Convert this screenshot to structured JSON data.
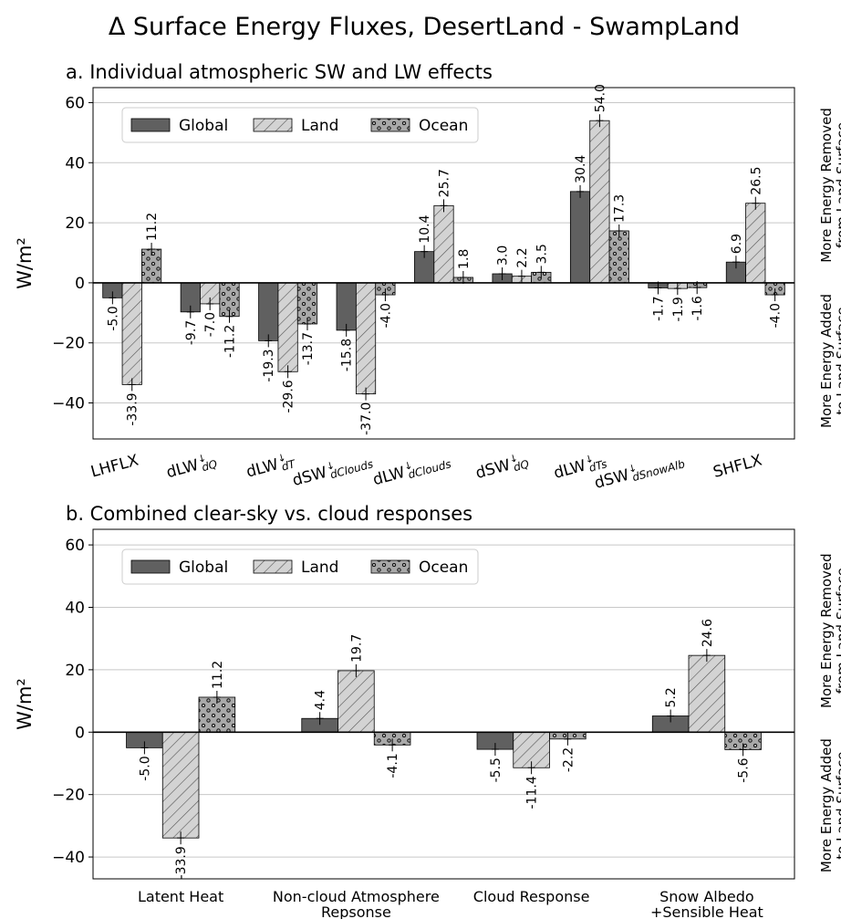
{
  "title": "Δ Surface Energy Fluxes, DesertLand - SwampLand",
  "colors": {
    "global": "#606060",
    "land": "#d3d3d3",
    "ocean": "#a9a9a9",
    "grid": "#c8c8c8",
    "axis": "#000000"
  },
  "chart_data": [
    {
      "type": "bar",
      "title": "a. Individual atmospheric SW and LW effects",
      "ylabel": "W/m²",
      "ylim": [
        -52,
        65
      ],
      "yticks": [
        -40,
        -20,
        0,
        20,
        40,
        60
      ],
      "ytick_labels": [
        "−40",
        "−20",
        "0",
        "20",
        "40",
        "60"
      ],
      "grid": true,
      "legend_position": "top-left",
      "right_annotation_top": [
        "More Energy Removed",
        "from Land Surface"
      ],
      "right_annotation_bottom": [
        "More Energy Added",
        "to Land Surface"
      ],
      "categories": [
        {
          "base": "LHFLX",
          "sub": ""
        },
        {
          "base": "dLW",
          "sub": "dQ"
        },
        {
          "base": "dLW",
          "sub": "dT"
        },
        {
          "base": "dSW",
          "sub": "dClouds"
        },
        {
          "base": "dLW",
          "sub": "dClouds"
        },
        {
          "base": "dSW",
          "sub": "dQ"
        },
        {
          "base": "dLW",
          "sub": "dTs"
        },
        {
          "base": "dSW",
          "sub": "dSnowAlb"
        },
        {
          "base": "SHFLX",
          "sub": ""
        }
      ],
      "series": [
        {
          "name": "Global",
          "key": "global",
          "values": [
            -5.0,
            -9.7,
            -19.3,
            -15.8,
            10.4,
            3.0,
            30.4,
            -1.7,
            6.9
          ],
          "labels": [
            "-5.0",
            "-9.7",
            "-19.3",
            "-15.8",
            "10.4",
            "3.0",
            "30.4",
            "-1.7",
            "6.9"
          ]
        },
        {
          "name": "Land",
          "key": "land",
          "values": [
            -33.9,
            -7.0,
            -29.6,
            -37.0,
            25.7,
            2.2,
            54.0,
            -1.9,
            26.5
          ],
          "labels": [
            "-33.9",
            "-7.0",
            "-29.6",
            "-37.0",
            "25.7",
            "2.2",
            "54.0",
            "-1.9",
            "26.5"
          ]
        },
        {
          "name": "Ocean",
          "key": "ocean",
          "values": [
            11.2,
            -11.2,
            -13.7,
            -4.0,
            1.8,
            3.5,
            17.3,
            -1.6,
            -4.0
          ],
          "labels": [
            "11.2",
            "-11.2",
            "-13.7",
            "-4.0",
            "1.8",
            "3.5",
            "17.3",
            "-1.6",
            "-4.0"
          ]
        }
      ]
    },
    {
      "type": "bar",
      "title": "b. Combined clear-sky vs. cloud responses",
      "ylabel": "W/m²",
      "ylim": [
        -47,
        65
      ],
      "yticks": [
        -40,
        -20,
        0,
        20,
        40,
        60
      ],
      "ytick_labels": [
        "−40",
        "−20",
        "0",
        "20",
        "40",
        "60"
      ],
      "grid": true,
      "legend_position": "top-left",
      "right_annotation_top": [
        "More Energy Removed",
        "from Land Surface"
      ],
      "right_annotation_bottom": [
        "More Energy Added",
        "to Land Surface"
      ],
      "categories": [
        {
          "lines": [
            "Latent Heat"
          ]
        },
        {
          "lines": [
            "Non-cloud Atmosphere",
            "Repsonse"
          ]
        },
        {
          "lines": [
            "Cloud Response"
          ]
        },
        {
          "lines": [
            "Snow Albedo",
            "+Sensible Heat"
          ]
        }
      ],
      "series": [
        {
          "name": "Global",
          "key": "global",
          "values": [
            -5.0,
            4.4,
            -5.5,
            5.2
          ],
          "labels": [
            "-5.0",
            "4.4",
            "-5.5",
            "5.2"
          ]
        },
        {
          "name": "Land",
          "key": "land",
          "values": [
            -33.9,
            19.7,
            -11.4,
            24.6
          ],
          "labels": [
            "-33.9",
            "19.7",
            "-11.4",
            "24.6"
          ]
        },
        {
          "name": "Ocean",
          "key": "ocean",
          "values": [
            11.2,
            -4.1,
            -2.2,
            -5.6
          ],
          "labels": [
            "11.2",
            "-4.1",
            "-2.2",
            "-5.6"
          ]
        }
      ]
    }
  ]
}
